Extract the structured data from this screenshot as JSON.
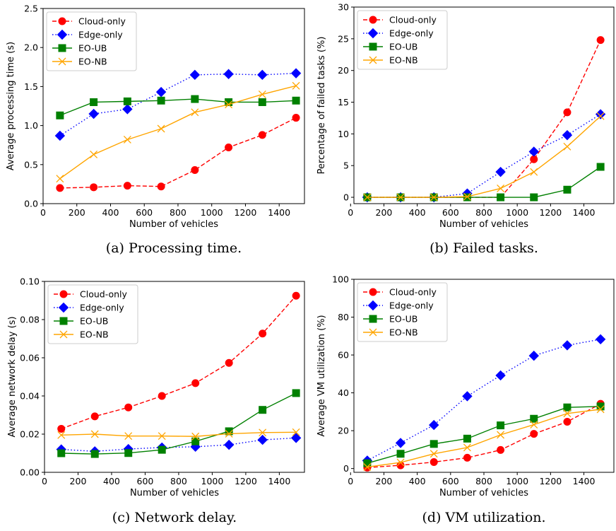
{
  "colors": {
    "cloud": "#ff0000",
    "edge": "#0000ff",
    "eoub": "#008000",
    "eonb": "#ffa500"
  },
  "chart_data": [
    {
      "type": "line",
      "caption": "(a)  Processing time.",
      "xlabel": "Number of vehicles",
      "ylabel": "Average processing time (s)",
      "xlim": [
        0,
        1550
      ],
      "ylim": [
        0,
        2.5
      ],
      "xticks": [
        "0",
        "200",
        "400",
        "600",
        "800",
        "1000",
        "1200",
        "1400"
      ],
      "yticks": [
        "0.0",
        "0.5",
        "1.0",
        "1.5",
        "2.0",
        "2.5"
      ],
      "legend_position": "upper-left",
      "x": [
        100,
        300,
        500,
        700,
        900,
        1100,
        1300,
        1500
      ],
      "series": [
        {
          "name": "Cloud-only",
          "values": [
            0.2,
            0.21,
            0.23,
            0.22,
            0.43,
            0.72,
            0.88,
            1.1
          ]
        },
        {
          "name": "Edge-only",
          "values": [
            0.87,
            1.15,
            1.21,
            1.43,
            1.65,
            1.66,
            1.65,
            1.67
          ]
        },
        {
          "name": "EO-UB",
          "values": [
            1.13,
            1.3,
            1.31,
            1.32,
            1.34,
            1.3,
            1.3,
            1.32
          ]
        },
        {
          "name": "EO-NB",
          "values": [
            0.32,
            0.63,
            0.82,
            0.96,
            1.17,
            1.27,
            1.4,
            1.51
          ]
        }
      ]
    },
    {
      "type": "line",
      "caption": "(b)  Failed tasks.",
      "xlabel": "Number of vehicles",
      "ylabel": "Percentage of failed tasks (%)",
      "xlim": [
        20,
        1580
      ],
      "ylim": [
        -1,
        30
      ],
      "xticks": [
        "0",
        "200",
        "400",
        "600",
        "800",
        "1000",
        "1200",
        "1400"
      ],
      "yticks": [
        "0",
        "5",
        "10",
        "15",
        "20",
        "25",
        "30"
      ],
      "legend_position": "upper-left",
      "x": [
        100,
        300,
        500,
        700,
        900,
        1100,
        1300,
        1500
      ],
      "series": [
        {
          "name": "Cloud-only",
          "values": [
            0,
            0,
            0,
            0,
            0,
            6.0,
            13.4,
            24.8
          ]
        },
        {
          "name": "Edge-only",
          "values": [
            0,
            0,
            0,
            0.6,
            4.0,
            7.2,
            9.8,
            13.1
          ]
        },
        {
          "name": "EO-UB",
          "values": [
            0,
            0,
            0,
            0,
            0,
            0,
            1.2,
            4.8
          ]
        },
        {
          "name": "EO-NB",
          "values": [
            0,
            0,
            0,
            0.1,
            1.4,
            4.0,
            8.0,
            12.8
          ]
        }
      ]
    },
    {
      "type": "line",
      "caption": "(c)  Network delay.",
      "xlabel": "Number of vehicles",
      "ylabel": "Average network delay (s)",
      "xlim": [
        0,
        1550
      ],
      "ylim": [
        0,
        0.1
      ],
      "xticks": [
        "0",
        "200",
        "400",
        "600",
        "800",
        "1000",
        "1200",
        "1400"
      ],
      "yticks": [
        "0.00",
        "0.02",
        "0.04",
        "0.06",
        "0.08",
        "0.10"
      ],
      "legend_position": "upper-left",
      "x": [
        100,
        300,
        500,
        700,
        900,
        1100,
        1300,
        1500
      ],
      "series": [
        {
          "name": "Cloud-only",
          "values": [
            0.0228,
            0.0293,
            0.034,
            0.04,
            0.0467,
            0.0573,
            0.0727,
            0.0925
          ]
        },
        {
          "name": "Edge-only",
          "values": [
            0.012,
            0.011,
            0.0122,
            0.013,
            0.0134,
            0.0144,
            0.017,
            0.018
          ]
        },
        {
          "name": "EO-UB",
          "values": [
            0.01,
            0.0096,
            0.0101,
            0.0118,
            0.0162,
            0.0215,
            0.0327,
            0.0415
          ]
        },
        {
          "name": "EO-NB",
          "values": [
            0.0195,
            0.02,
            0.019,
            0.019,
            0.0188,
            0.0202,
            0.0208,
            0.021
          ]
        }
      ]
    },
    {
      "type": "line",
      "caption": "(d)  VM utilization.",
      "xlabel": "Number of vehicles",
      "ylabel": "Average VM utilization (%)",
      "xlim": [
        20,
        1580
      ],
      "ylim": [
        -2,
        100
      ],
      "xticks": [
        "0",
        "200",
        "400",
        "600",
        "800",
        "1000",
        "1200",
        "1400"
      ],
      "yticks": [
        "0",
        "20",
        "40",
        "60",
        "80",
        "100"
      ],
      "legend_position": "upper-left",
      "x": [
        100,
        300,
        500,
        700,
        900,
        1100,
        1300,
        1500
      ],
      "series": [
        {
          "name": "Cloud-only",
          "values": [
            0.5,
            1.7,
            3.4,
            5.7,
            9.8,
            18.3,
            24.7,
            34.2
          ]
        },
        {
          "name": "Edge-only",
          "values": [
            4.2,
            13.5,
            23.0,
            38.2,
            49.2,
            59.6,
            65.1,
            68.3
          ]
        },
        {
          "name": "EO-UB",
          "values": [
            2.8,
            7.8,
            13.0,
            15.8,
            22.8,
            26.3,
            32.3,
            32.8
          ]
        },
        {
          "name": "EO-NB",
          "values": [
            0.8,
            3.2,
            7.8,
            11.1,
            17.8,
            23.2,
            29.1,
            31.3
          ]
        }
      ]
    }
  ]
}
